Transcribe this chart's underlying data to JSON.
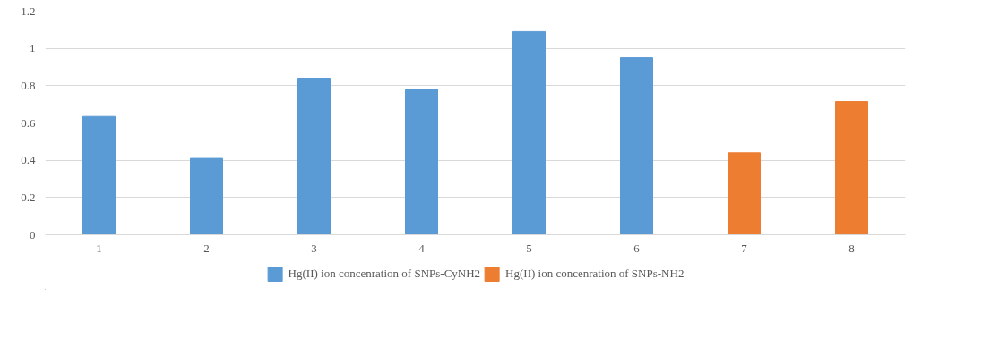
{
  "chart_data": {
    "type": "bar",
    "categories": [
      "1",
      "2",
      "3",
      "4",
      "5",
      "6",
      "7",
      "8"
    ],
    "series": [
      {
        "name": "Hg(II) ion concenration of SNPs-CyNH2",
        "color": "#5b9bd5",
        "values": [
          0.635,
          0.41,
          0.84,
          0.78,
          1.09,
          0.95,
          null,
          null
        ]
      },
      {
        "name": "Hg(II) ion concenration of SNPs-NH2",
        "color": "#ed7d31",
        "values": [
          null,
          null,
          null,
          null,
          null,
          null,
          0.44,
          0.715
        ]
      }
    ],
    "ylim": [
      0,
      1.2
    ],
    "yticks": [
      0,
      0.2,
      0.4,
      0.6,
      0.8,
      1,
      1.2
    ],
    "grid": "y",
    "legend": "bottom"
  }
}
